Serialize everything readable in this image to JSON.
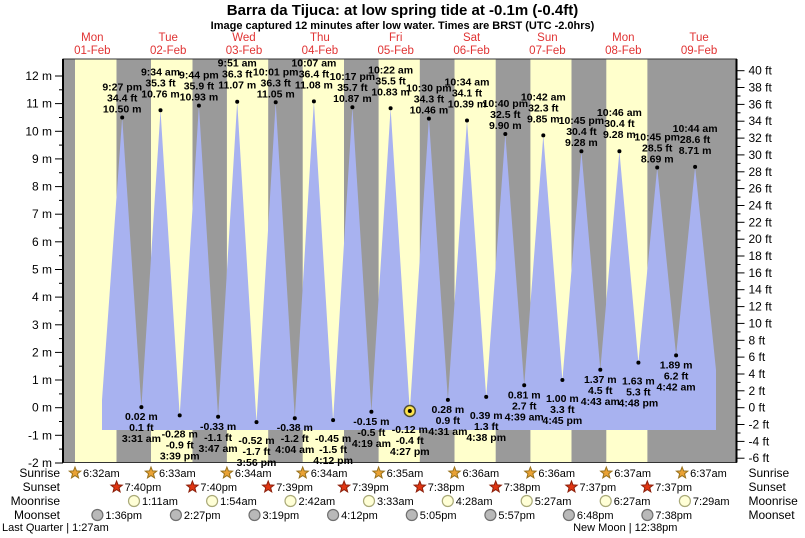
{
  "title": "Barra da Tijuca: at low  spring tide at -0.1m (-0.4ft)",
  "subtitle": "Image captured 12 minutes after low water. Times are BRST (UTC -2.0hrs)",
  "days": [
    {
      "name": "Mon",
      "date": "01-Feb"
    },
    {
      "name": "Tue",
      "date": "02-Feb"
    },
    {
      "name": "Wed",
      "date": "03-Feb"
    },
    {
      "name": "Thu",
      "date": "04-Feb"
    },
    {
      "name": "Fri",
      "date": "05-Feb"
    },
    {
      "name": "Sat",
      "date": "06-Feb"
    },
    {
      "name": "Sun",
      "date": "07-Feb"
    },
    {
      "name": "Mon",
      "date": "08-Feb"
    },
    {
      "name": "Tue",
      "date": "09-Feb"
    }
  ],
  "chart_data": {
    "type": "area",
    "title": "Barra da Tijuca tide height",
    "ylabel_left": "meters",
    "ylabel_right": "feet",
    "ylim_m": [
      -2,
      12
    ],
    "ylim_ft": [
      -6,
      40
    ],
    "left_ticks": [
      "12 m",
      "11 m",
      "10 m",
      "9 m",
      "8 m",
      "7 m",
      "6 m",
      "5 m",
      "4 m",
      "3 m",
      "2 m",
      "1 m",
      "0 m",
      "-1 m",
      "-2 m"
    ],
    "right_ticks": [
      "40 ft",
      "38 ft",
      "36 ft",
      "34 ft",
      "32 ft",
      "30 ft",
      "28 ft",
      "26 ft",
      "24 ft",
      "22 ft",
      "20 ft",
      "18 ft",
      "16 ft",
      "14 ft",
      "12 ft",
      "10 ft",
      "8 ft",
      "6 ft",
      "4 ft",
      "2 ft",
      "0 ft",
      "-2 ft",
      "-4 ft",
      "-6 ft"
    ],
    "highs": [
      {
        "day": 0,
        "time": "9:27 pm",
        "ft": "34.4",
        "m": "10.50"
      },
      {
        "day": 1,
        "time": "9:34 am",
        "ft": "35.3",
        "m": "10.76"
      },
      {
        "day": 1,
        "time": "9:44 pm",
        "ft": "35.9",
        "m": "10.93"
      },
      {
        "day": 2,
        "time": "9:51 am",
        "ft": "36.3",
        "m": "11.07"
      },
      {
        "day": 2,
        "time": "10:01 pm",
        "ft": "36.3",
        "m": "11.05"
      },
      {
        "day": 3,
        "time": "10:07 am",
        "ft": "36.4",
        "m": "11.08"
      },
      {
        "day": 3,
        "time": "10:17 pm",
        "ft": "35.7",
        "m": "10.87"
      },
      {
        "day": 4,
        "time": "10:22 am",
        "ft": "35.5",
        "m": "10.83"
      },
      {
        "day": 4,
        "time": "10:30 pm",
        "ft": "34.3",
        "m": "10.46"
      },
      {
        "day": 5,
        "time": "10:34 am",
        "ft": "34.1",
        "m": "10.39"
      },
      {
        "day": 5,
        "time": "10:40 pm",
        "ft": "32.5",
        "m": "9.90"
      },
      {
        "day": 6,
        "time": "10:42 am",
        "ft": "32.3",
        "m": "9.85"
      },
      {
        "day": 6,
        "time": "10:45 pm",
        "ft": "30.4",
        "m": "9.28"
      },
      {
        "day": 7,
        "time": "10:46 am",
        "ft": "30.4",
        "m": "9.28"
      },
      {
        "day": 7,
        "time": "10:45 pm",
        "ft": "28.5",
        "m": "8.69"
      },
      {
        "day": 8,
        "time": "10:44 am",
        "ft": "28.6",
        "m": "8.71"
      }
    ],
    "lows": [
      {
        "day": 1,
        "time": "3:31 am",
        "ft": "0.1",
        "m": "0.02"
      },
      {
        "day": 1,
        "time": "3:39 pm",
        "ft": "-0.9",
        "m": "-0.28"
      },
      {
        "day": 2,
        "time": "3:47 am",
        "ft": "-1.1",
        "m": "-0.33"
      },
      {
        "day": 2,
        "time": "3:56 pm",
        "ft": "-1.7",
        "m": "-0.52"
      },
      {
        "day": 3,
        "time": "4:04 am",
        "ft": "-1.2",
        "m": "-0.38"
      },
      {
        "day": 3,
        "time": "4:12 pm",
        "ft": "-1.5",
        "m": "-0.45"
      },
      {
        "day": 4,
        "time": "4:19 am",
        "ft": "-0.5",
        "m": "-0.15"
      },
      {
        "day": 4,
        "time": "4:27 pm",
        "ft": "-0.4",
        "m": "-0.12"
      },
      {
        "day": 5,
        "time": "4:31 am",
        "ft": "0.9",
        "m": "0.28"
      },
      {
        "day": 5,
        "time": "4:38 pm",
        "ft": "1.3",
        "m": "0.39"
      },
      {
        "day": 6,
        "time": "4:39 am",
        "ft": "2.7",
        "m": "0.81"
      },
      {
        "day": 6,
        "time": "4:45 pm",
        "ft": "3.3",
        "m": "1.00"
      },
      {
        "day": 7,
        "time": "4:43 am",
        "ft": "4.5",
        "m": "1.37"
      },
      {
        "day": 7,
        "time": "4:48 pm",
        "ft": "5.3",
        "m": "1.63"
      },
      {
        "day": 8,
        "time": "4:42 am",
        "ft": "6.2",
        "m": "1.89"
      }
    ],
    "current_marker": {
      "type": "low",
      "index": 7
    }
  },
  "astro": {
    "rows": [
      {
        "id": "sunrise",
        "label": "Sunrise",
        "icon": "sunrise-star",
        "entries": [
          {
            "day": 0,
            "t": "6:32am"
          },
          {
            "day": 1,
            "t": "6:33am"
          },
          {
            "day": 2,
            "t": "6:34am"
          },
          {
            "day": 3,
            "t": "6:34am"
          },
          {
            "day": 4,
            "t": "6:35am"
          },
          {
            "day": 5,
            "t": "6:36am"
          },
          {
            "day": 6,
            "t": "6:36am"
          },
          {
            "day": 7,
            "t": "6:37am"
          },
          {
            "day": 8,
            "t": "6:37am"
          }
        ]
      },
      {
        "id": "sunset",
        "label": "Sunset",
        "icon": "sunset-star",
        "entries": [
          {
            "day": 0,
            "t": "7:40pm"
          },
          {
            "day": 1,
            "t": "7:40pm"
          },
          {
            "day": 2,
            "t": "7:39pm"
          },
          {
            "day": 3,
            "t": "7:39pm"
          },
          {
            "day": 4,
            "t": "7:38pm"
          },
          {
            "day": 5,
            "t": "7:38pm"
          },
          {
            "day": 6,
            "t": "7:37pm"
          },
          {
            "day": 7,
            "t": "7:37pm"
          }
        ]
      },
      {
        "id": "moonrise",
        "label": "Moonrise",
        "icon": "moonrise-circle",
        "entries": [
          {
            "day": 1,
            "t": "1:11am"
          },
          {
            "day": 2,
            "t": "1:54am"
          },
          {
            "day": 3,
            "t": "2:42am"
          },
          {
            "day": 4,
            "t": "3:33am"
          },
          {
            "day": 5,
            "t": "4:28am"
          },
          {
            "day": 6,
            "t": "5:27am"
          },
          {
            "day": 7,
            "t": "6:27am"
          },
          {
            "day": 8,
            "t": "7:29am"
          }
        ]
      },
      {
        "id": "moonset",
        "label": "Moonset",
        "icon": "moonset-circle",
        "entries": [
          {
            "day": 0,
            "t": "1:36pm"
          },
          {
            "day": 1,
            "t": "2:27pm"
          },
          {
            "day": 2,
            "t": "3:19pm"
          },
          {
            "day": 3,
            "t": "4:12pm"
          },
          {
            "day": 4,
            "t": "5:05pm"
          },
          {
            "day": 5,
            "t": "5:57pm"
          },
          {
            "day": 6,
            "t": "6:48pm"
          },
          {
            "day": 7,
            "t": "7:38pm"
          }
        ]
      }
    ],
    "phases": [
      {
        "label": "Last Quarter",
        "time": "1:27am",
        "day": 0
      },
      {
        "label": "New Moon",
        "time": "12:38pm",
        "day": 7
      }
    ]
  },
  "colors": {
    "day_band": "#ffffcc",
    "night_band": "#9a9a9a",
    "tide_fill": "#a8b2f0",
    "day_label": "#e03333",
    "sunrise_star": "#eaa234",
    "sunrise_star_edge": "#97711c",
    "sunset_star": "#e03512",
    "sunset_star_edge": "#8c1f0a",
    "moonrise_circle": "#ffffd6",
    "moonrise_edge": "#a9a978",
    "moonset_circle": "#b9b9b9",
    "moonset_edge": "#6f6f6f",
    "marker_fill": "#ffe44d",
    "marker_edge": "#4d4d33"
  }
}
